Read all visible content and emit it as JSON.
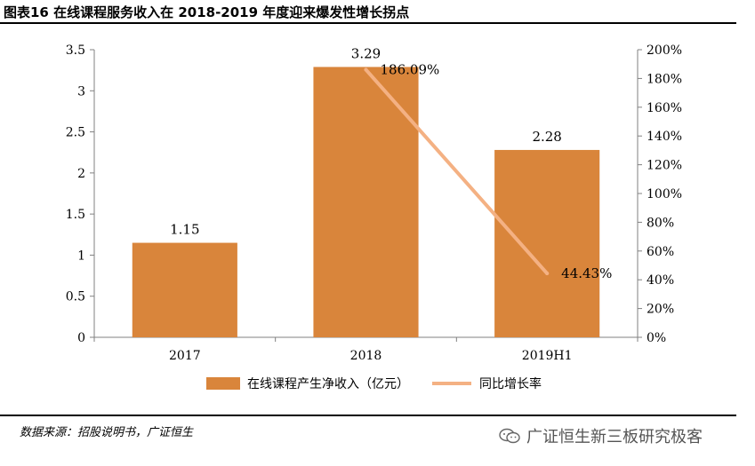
{
  "header": {
    "title": "图表16 在线课程服务收入在 2018-2019 年度迎来爆发性增长拐点"
  },
  "footer": {
    "source": "数据来源：招股说明书，广证恒生",
    "watermark": "广证恒生新三板研究极客"
  },
  "chart_data": {
    "type": "bar",
    "categories": [
      "2017",
      "2018",
      "2019H1"
    ],
    "series": [
      {
        "name": "在线课程产生净收入（亿元）",
        "type": "bar",
        "axis": "left",
        "color": "#D9853B",
        "values": [
          1.15,
          3.29,
          2.28
        ],
        "labels": [
          "1.15",
          "3.29",
          "2.28"
        ]
      },
      {
        "name": "同比增长率",
        "type": "line",
        "axis": "right",
        "color": "#F4B183",
        "values": [
          null,
          186.09,
          44.43
        ],
        "labels": [
          "",
          "186.09%",
          "44.43%"
        ]
      }
    ],
    "y_left": {
      "min": 0,
      "max": 3.5,
      "ticks": [
        "0",
        "0.5",
        "1",
        "1.5",
        "2",
        "2.5",
        "3",
        "3.5"
      ]
    },
    "y_right": {
      "min": 0,
      "max": 200,
      "ticks": [
        "0%",
        "20%",
        "40%",
        "60%",
        "80%",
        "100%",
        "120%",
        "140%",
        "160%",
        "180%",
        "200%"
      ]
    },
    "legend": {
      "position": "bottom"
    }
  }
}
